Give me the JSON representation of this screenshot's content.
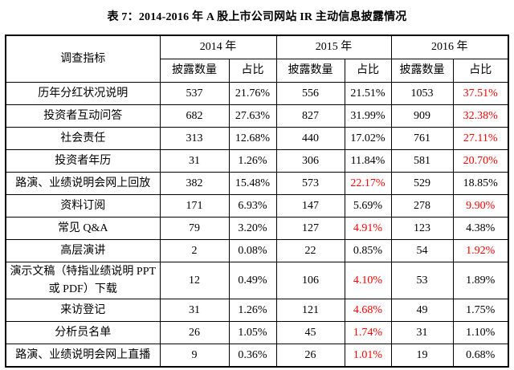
{
  "title": "表 7：2014-2016 年 A 股上市公司网站 IR 主动信息披露情况",
  "colors": {
    "highlight": "#ff0000",
    "text": "#000000",
    "border": "#000000",
    "background": "#ffffff"
  },
  "table": {
    "indicator_header": "调查指标",
    "year_headers": [
      "2014 年",
      "2015 年",
      "2016 年"
    ],
    "sub_headers": [
      "披露数量",
      "占比"
    ],
    "rows": [
      {
        "label": "历年分红状况说明",
        "values": [
          "537",
          "21.76%",
          "556",
          "21.51%",
          "1053",
          "37.51%"
        ],
        "red_indices": [
          5
        ]
      },
      {
        "label": "投资者互动问答",
        "values": [
          "682",
          "27.63%",
          "827",
          "31.99%",
          "909",
          "32.38%"
        ],
        "red_indices": [
          5
        ]
      },
      {
        "label": "社会责任",
        "values": [
          "313",
          "12.68%",
          "440",
          "17.02%",
          "761",
          "27.11%"
        ],
        "red_indices": [
          5
        ]
      },
      {
        "label": "投资者年历",
        "values": [
          "31",
          "1.26%",
          "306",
          "11.84%",
          "581",
          "20.70%"
        ],
        "red_indices": [
          5
        ]
      },
      {
        "label": "路演、业绩说明会网上回放",
        "values": [
          "382",
          "15.48%",
          "573",
          "22.17%",
          "529",
          "18.85%"
        ],
        "red_indices": [
          3
        ]
      },
      {
        "label": "资料订阅",
        "values": [
          "171",
          "6.93%",
          "147",
          "5.69%",
          "278",
          "9.90%"
        ],
        "red_indices": [
          5
        ]
      },
      {
        "label": "常见 Q&A",
        "values": [
          "79",
          "3.20%",
          "127",
          "4.91%",
          "123",
          "4.38%"
        ],
        "red_indices": [
          3
        ]
      },
      {
        "label": "高层演讲",
        "values": [
          "2",
          "0.08%",
          "22",
          "0.85%",
          "54",
          "1.92%"
        ],
        "red_indices": [
          5
        ]
      },
      {
        "label": "演示文稿（特指业绩说明 PPT 或 PDF）下载",
        "values": [
          "12",
          "0.49%",
          "106",
          "4.10%",
          "53",
          "1.89%"
        ],
        "red_indices": [
          3
        ]
      },
      {
        "label": "来访登记",
        "values": [
          "31",
          "1.26%",
          "121",
          "4.68%",
          "49",
          "1.75%"
        ],
        "red_indices": [
          3
        ]
      },
      {
        "label": "分析员名单",
        "values": [
          "26",
          "1.05%",
          "45",
          "1.74%",
          "31",
          "1.10%"
        ],
        "red_indices": [
          3
        ]
      },
      {
        "label": "路演、业绩说明会网上直播",
        "values": [
          "9",
          "0.36%",
          "26",
          "1.01%",
          "19",
          "0.68%"
        ],
        "red_indices": [
          3
        ]
      }
    ]
  }
}
